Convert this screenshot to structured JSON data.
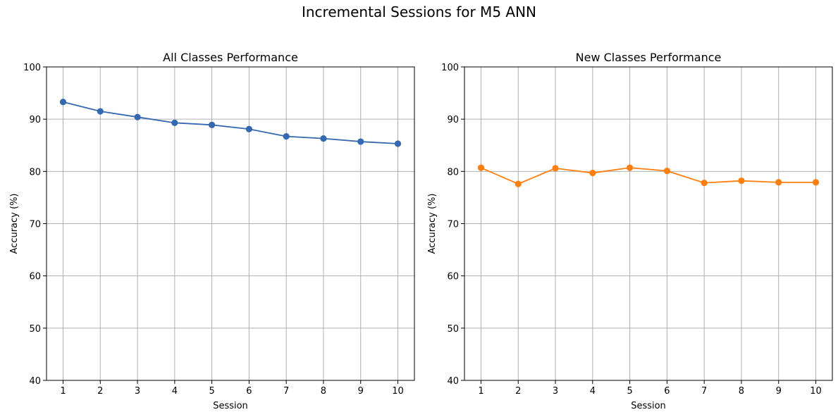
{
  "figure": {
    "title": "Incremental Sessions for M5 ANN"
  },
  "chart_data": [
    {
      "type": "line",
      "title": "All Classes Performance",
      "xlabel": "Session",
      "ylabel": "Accuracy (%)",
      "ylim": [
        40,
        100
      ],
      "yticks": [
        40,
        50,
        60,
        70,
        80,
        90,
        100
      ],
      "x": [
        1,
        2,
        3,
        4,
        5,
        6,
        7,
        8,
        9,
        10
      ],
      "grid": true,
      "series": [
        {
          "color": "#3468b0",
          "marker": "circle",
          "values": [
            93.3,
            91.5,
            90.4,
            89.3,
            88.9,
            88.1,
            86.7,
            86.3,
            85.7,
            85.3
          ]
        }
      ]
    },
    {
      "type": "line",
      "title": "New Classes Performance",
      "xlabel": "Session",
      "ylabel": "Accuracy (%)",
      "ylim": [
        40,
        100
      ],
      "yticks": [
        40,
        50,
        60,
        70,
        80,
        90,
        100
      ],
      "x": [
        1,
        2,
        3,
        4,
        5,
        6,
        7,
        8,
        9,
        10
      ],
      "grid": true,
      "series": [
        {
          "color": "#ff7f0e",
          "marker": "circle",
          "values": [
            80.7,
            77.6,
            80.6,
            79.7,
            80.7,
            80.1,
            77.8,
            78.2,
            77.9,
            77.9
          ]
        }
      ]
    }
  ]
}
